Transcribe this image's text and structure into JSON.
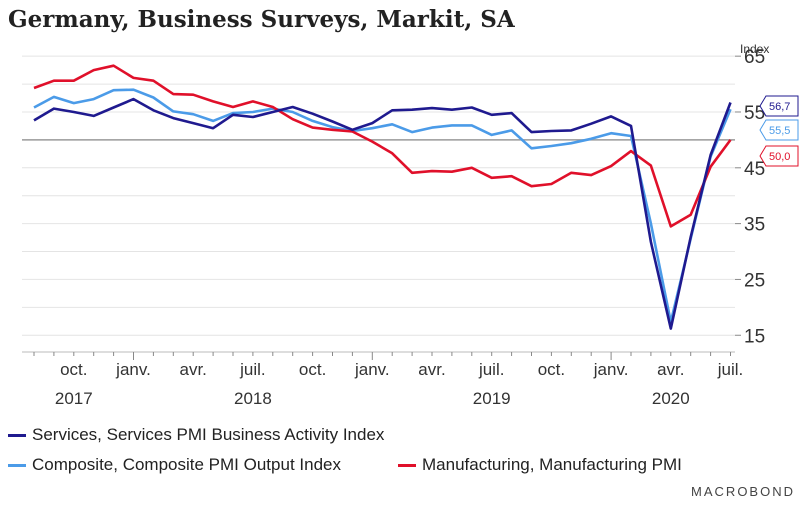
{
  "title": "Germany, Business Surveys, Markit, SA",
  "brand": "MACROBOND",
  "legend_items": {
    "services": "Services, Services PMI Business Activity Index",
    "composite": "Composite, Composite PMI Output Index",
    "manufacturing": "Manufacturing, Manufacturing PMI"
  },
  "chart_data": {
    "type": "line",
    "ylabel": "Index",
    "ylim": [
      12,
      67
    ],
    "y_ticks": [
      15,
      25,
      35,
      45,
      55,
      65
    ],
    "reference_line": 50,
    "grid": "horizontal",
    "x": [
      "2017-08",
      "2017-09",
      "2017-10",
      "2017-11",
      "2017-12",
      "2018-01",
      "2018-02",
      "2018-03",
      "2018-04",
      "2018-05",
      "2018-06",
      "2018-07",
      "2018-08",
      "2018-09",
      "2018-10",
      "2018-11",
      "2018-12",
      "2019-01",
      "2019-02",
      "2019-03",
      "2019-04",
      "2019-05",
      "2019-06",
      "2019-07",
      "2019-08",
      "2019-09",
      "2019-10",
      "2019-11",
      "2019-12",
      "2020-01",
      "2020-02",
      "2020-03",
      "2020-04",
      "2020-05",
      "2020-06",
      "2020-07"
    ],
    "month_ticks": [
      {
        "date": "2017-10",
        "label": "oct."
      },
      {
        "date": "2018-01",
        "label": "janv."
      },
      {
        "date": "2018-04",
        "label": "avr."
      },
      {
        "date": "2018-07",
        "label": "juil."
      },
      {
        "date": "2018-10",
        "label": "oct."
      },
      {
        "date": "2019-01",
        "label": "janv."
      },
      {
        "date": "2019-04",
        "label": "avr."
      },
      {
        "date": "2019-07",
        "label": "juil."
      },
      {
        "date": "2019-10",
        "label": "oct."
      },
      {
        "date": "2020-01",
        "label": "janv."
      },
      {
        "date": "2020-04",
        "label": "avr."
      },
      {
        "date": "2020-07",
        "label": "juil."
      }
    ],
    "year_ticks": [
      {
        "date": "2017-10",
        "label": "2017"
      },
      {
        "date": "2018-07",
        "label": "2018"
      },
      {
        "date": "2019-07",
        "label": "2019"
      },
      {
        "date": "2020-04",
        "label": "2020"
      }
    ],
    "series": [
      {
        "key": "services",
        "name": "Services, Services PMI Business Activity Index",
        "color": "#1f1a8f",
        "end_label": "56,7",
        "values": [
          53.5,
          55.6,
          55.0,
          54.3,
          55.8,
          57.3,
          55.3,
          53.9,
          53.0,
          52.1,
          54.5,
          54.1,
          55.0,
          55.9,
          54.7,
          53.3,
          51.8,
          53.0,
          55.3,
          55.4,
          55.7,
          55.4,
          55.8,
          54.5,
          54.8,
          51.4,
          51.6,
          51.7,
          52.9,
          54.2,
          52.5,
          31.7,
          16.2,
          32.6,
          47.3,
          56.7
        ]
      },
      {
        "key": "composite",
        "name": "Composite, Composite PMI Output Index",
        "color": "#4b9be8",
        "end_label": "55,5",
        "values": [
          55.8,
          57.7,
          56.6,
          57.3,
          58.9,
          59.0,
          57.6,
          55.1,
          54.6,
          53.4,
          54.8,
          55.0,
          55.6,
          55.0,
          53.4,
          52.3,
          51.6,
          52.1,
          52.8,
          51.4,
          52.2,
          52.6,
          52.6,
          50.9,
          51.7,
          48.5,
          48.9,
          49.4,
          50.2,
          51.2,
          50.7,
          35.0,
          17.4,
          32.3,
          47.0,
          55.5
        ]
      },
      {
        "key": "manufacturing",
        "name": "Manufacturing, Manufacturing PMI",
        "color": "#e0102a",
        "end_label": "50,0",
        "values": [
          59.3,
          60.6,
          60.6,
          62.5,
          63.3,
          61.1,
          60.6,
          58.2,
          58.1,
          56.9,
          55.9,
          56.9,
          55.9,
          53.7,
          52.2,
          51.8,
          51.5,
          49.7,
          47.6,
          44.1,
          44.4,
          44.3,
          45.0,
          43.2,
          43.5,
          41.7,
          42.1,
          44.1,
          43.7,
          45.3,
          48.0,
          45.4,
          34.5,
          36.6,
          45.2,
          50.0
        ]
      }
    ]
  }
}
